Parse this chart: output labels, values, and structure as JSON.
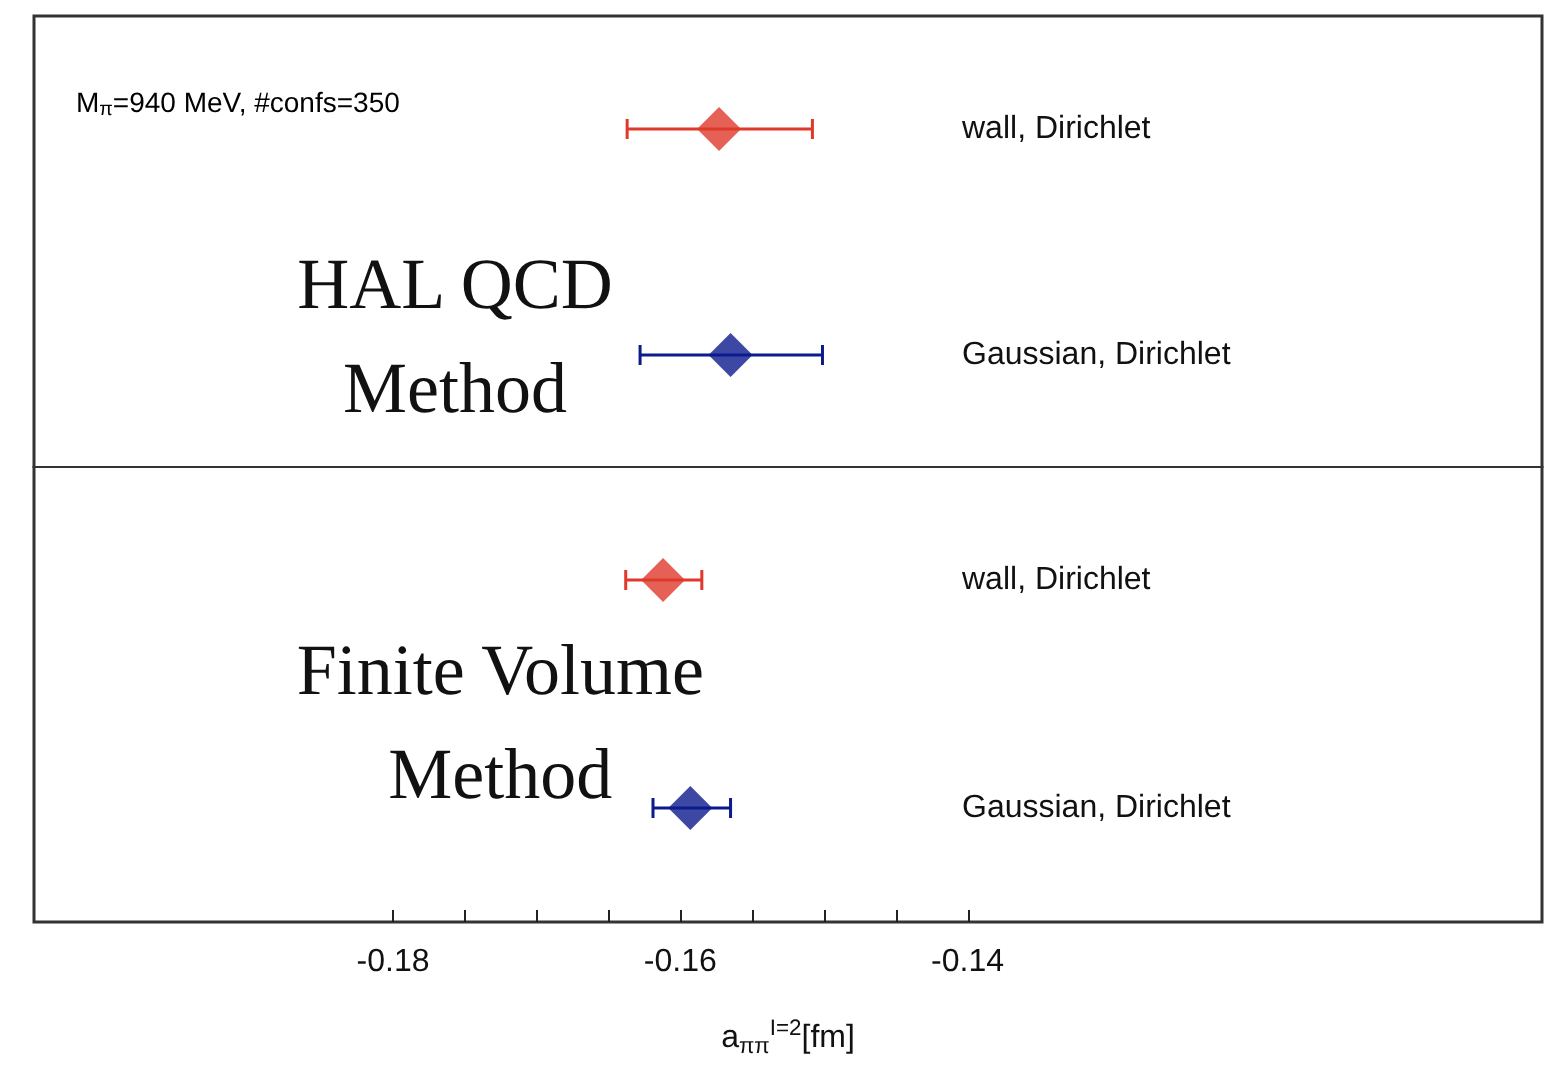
{
  "chart_data": [
    {
      "type": "scatter",
      "orientation": "horizontal",
      "categories": [
        "wall, Dirichlet",
        "Gaussian, Dirichlet"
      ],
      "values": [
        -0.1573,
        -0.1565
      ],
      "errors": [
        [
          -0.1637,
          -0.1508
        ],
        [
          -0.1628,
          -0.1501
        ]
      ],
      "colors": [
        "#e0392b",
        "#0b1a8c"
      ],
      "marker": "diamond",
      "xlim": [
        -0.205,
        -0.1
      ],
      "tick_labels": "y",
      "grid": false,
      "annotations": [
        "M$_{π}$=940 MeV, #confs=350",
        "HAL QCD Method"
      ]
    },
    {
      "type": "scatter",
      "orientation": "horizontal",
      "categories": [
        "wall, Dirichlet",
        "Gaussian, Dirichlet"
      ],
      "values": [
        -0.1612,
        -0.1593
      ],
      "errors": [
        [
          -0.1638,
          -0.1585
        ],
        [
          -0.1619,
          -0.1565
        ]
      ],
      "colors": [
        "#e0392b",
        "#0b1a8c"
      ],
      "marker": "diamond",
      "xlim": [
        -0.205,
        -0.1
      ],
      "xticks": [
        -0.18,
        {
          "value": -0.175,
          "label": null
        },
        {
          "value": -0.17,
          "label": null
        },
        {
          "value": -0.165,
          "label": null
        },
        -0.16,
        {
          "value": -0.155,
          "label": null
        },
        {
          "value": -0.15,
          "label": null
        },
        {
          "value": -0.145,
          "label": null
        },
        -0.14
      ],
      "xlabel": "a$_{ππ}$$^{I=2}$[fm]",
      "grid": false,
      "annotations": [
        "Finite Volume Method"
      ]
    }
  ]
}
